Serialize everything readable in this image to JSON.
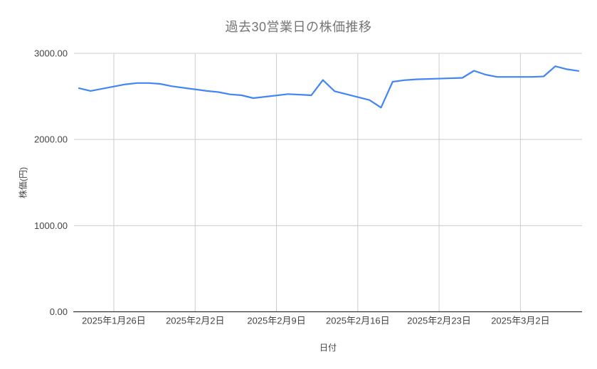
{
  "chart_data": {
    "type": "line",
    "title": "過去30営業日の株価推移",
    "xlabel": "日付",
    "ylabel": "株価(円)",
    "legend_position": "none",
    "grid": true,
    "ylim": [
      0,
      3000
    ],
    "y_ticks": [
      {
        "label": "0.00",
        "value": 0
      },
      {
        "label": "1000.00",
        "value": 1000
      },
      {
        "label": "2000.00",
        "value": 2000
      },
      {
        "label": "3000.00",
        "value": 3000
      }
    ],
    "x_ticks": [
      {
        "label": "2025年1月26日",
        "date": "2025-01-26"
      },
      {
        "label": "2025年2月2日",
        "date": "2025-02-02"
      },
      {
        "label": "2025年2月9日",
        "date": "2025-02-09"
      },
      {
        "label": "2025年2月16日",
        "date": "2025-02-16"
      },
      {
        "label": "2025年2月23日",
        "date": "2025-02-23"
      },
      {
        "label": "2025年3月2日",
        "date": "2025-03-02"
      }
    ],
    "points": [
      {
        "date": "2025-01-23",
        "value": 2595
      },
      {
        "date": "2025-01-24",
        "value": 2563
      },
      {
        "date": "2025-01-27",
        "value": 2640
      },
      {
        "date": "2025-01-28",
        "value": 2655
      },
      {
        "date": "2025-01-29",
        "value": 2655
      },
      {
        "date": "2025-01-30",
        "value": 2645
      },
      {
        "date": "2025-01-31",
        "value": 2618
      },
      {
        "date": "2025-02-03",
        "value": 2563
      },
      {
        "date": "2025-02-04",
        "value": 2550
      },
      {
        "date": "2025-02-05",
        "value": 2524
      },
      {
        "date": "2025-02-06",
        "value": 2513
      },
      {
        "date": "2025-02-07",
        "value": 2480
      },
      {
        "date": "2025-02-10",
        "value": 2527
      },
      {
        "date": "2025-02-12",
        "value": 2513
      },
      {
        "date": "2025-02-13",
        "value": 2690
      },
      {
        "date": "2025-02-14",
        "value": 2560
      },
      {
        "date": "2025-02-17",
        "value": 2458
      },
      {
        "date": "2025-02-18",
        "value": 2370
      },
      {
        "date": "2025-02-19",
        "value": 2670
      },
      {
        "date": "2025-02-20",
        "value": 2688
      },
      {
        "date": "2025-02-21",
        "value": 2698
      },
      {
        "date": "2025-02-25",
        "value": 2715
      },
      {
        "date": "2025-02-26",
        "value": 2798
      },
      {
        "date": "2025-02-27",
        "value": 2752
      },
      {
        "date": "2025-02-28",
        "value": 2726
      },
      {
        "date": "2025-03-03",
        "value": 2726
      },
      {
        "date": "2025-03-04",
        "value": 2732
      },
      {
        "date": "2025-03-05",
        "value": 2850
      },
      {
        "date": "2025-03-06",
        "value": 2815
      },
      {
        "date": "2025-03-07",
        "value": 2795
      }
    ],
    "colors": {
      "line": "#4285f4",
      "grid": "#cccccc",
      "axis": "#333333",
      "tick_label": "#444444",
      "title": "#757575"
    }
  }
}
